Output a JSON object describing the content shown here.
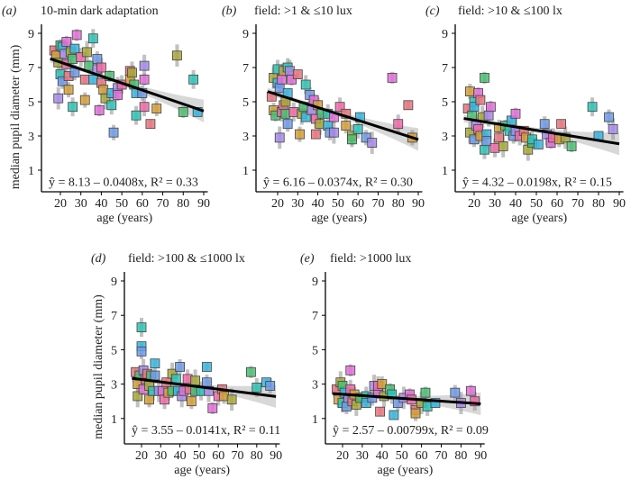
{
  "chart_data": {
    "type": "scatter",
    "palette": [
      "#e8757f",
      "#d4a03a",
      "#a8a83a",
      "#4bbf73",
      "#2ec4b6",
      "#38b6e0",
      "#6f9be8",
      "#a78bea",
      "#e070d8",
      "#f06aa8"
    ],
    "ylabel": "median pupil diameter (mm)",
    "xlabel": "age (years)",
    "xticks": [
      20,
      30,
      40,
      50,
      60,
      70,
      80,
      90
    ],
    "yticks": [
      1,
      3,
      5,
      7,
      9
    ],
    "xlim": [
      11,
      93
    ],
    "ylim": [
      -0.3,
      9.5
    ],
    "panels": [
      {
        "letter": "(a)",
        "title": "10-min dark adaptation",
        "intercept": 8.13,
        "slope": -0.0408,
        "r2": 0.33,
        "equation": "ŷ = 8.13 – 0.0408x, R² = 0.33",
        "points": [
          [
            17,
            8.0
          ],
          [
            18,
            7.7
          ],
          [
            19,
            7.3
          ],
          [
            20,
            8.3
          ],
          [
            20,
            6.6
          ],
          [
            21,
            8.2
          ],
          [
            21,
            6.2
          ],
          [
            22,
            7.8
          ],
          [
            23,
            8.5
          ],
          [
            23,
            7.2
          ],
          [
            24,
            6.5
          ],
          [
            24,
            5.7
          ],
          [
            25,
            7.9
          ],
          [
            26,
            7.5
          ],
          [
            26,
            4.7
          ],
          [
            27,
            8.1
          ],
          [
            27,
            6.7
          ],
          [
            19,
            5.2
          ],
          [
            28,
            8.9
          ],
          [
            30,
            7.6
          ],
          [
            32,
            6.3
          ],
          [
            32,
            5.1
          ],
          [
            33,
            7.9
          ],
          [
            34,
            7.1
          ],
          [
            36,
            8.7
          ],
          [
            36,
            6.3
          ],
          [
            38,
            7.5
          ],
          [
            38,
            6.9
          ],
          [
            39,
            4.5
          ],
          [
            40,
            7.0
          ],
          [
            40,
            6.1
          ],
          [
            41,
            5.7
          ],
          [
            42,
            5.2
          ],
          [
            44,
            6.5
          ],
          [
            45,
            4.8
          ],
          [
            45,
            5.5
          ],
          [
            46,
            3.2
          ],
          [
            48,
            5.8
          ],
          [
            48,
            5.4
          ],
          [
            50,
            6.0
          ],
          [
            54,
            6.8
          ],
          [
            54,
            6.3
          ],
          [
            55,
            6.7
          ],
          [
            56,
            6.0
          ],
          [
            57,
            4.2
          ],
          [
            57,
            5.5
          ],
          [
            60,
            5.5
          ],
          [
            61,
            7.1
          ],
          [
            61,
            6.3
          ],
          [
            61,
            4.7
          ],
          [
            64,
            3.7
          ],
          [
            67,
            4.6
          ],
          [
            77,
            7.7
          ],
          [
            80,
            4.4
          ],
          [
            85,
            6.3
          ],
          [
            87,
            4.4
          ]
        ]
      },
      {
        "letter": "(b)",
        "title": "field: >1 & ≤10 lux",
        "intercept": 6.16,
        "slope": -0.0374,
        "r2": 0.3,
        "equation": "ŷ = 6.16 – 0.0374x, R² = 0.30",
        "points": [
          [
            17,
            5.3
          ],
          [
            18,
            4.5
          ],
          [
            18,
            6.4
          ],
          [
            19,
            4.2
          ],
          [
            20,
            6.9
          ],
          [
            20,
            6.1
          ],
          [
            21,
            5.8
          ],
          [
            21,
            2.9
          ],
          [
            22,
            6.3
          ],
          [
            22,
            4.4
          ],
          [
            23,
            4.8
          ],
          [
            23,
            6.8
          ],
          [
            24,
            5.0
          ],
          [
            24,
            4.3
          ],
          [
            25,
            7.0
          ],
          [
            25,
            5.5
          ],
          [
            25,
            3.7
          ],
          [
            26,
            6.8
          ],
          [
            27,
            6.3
          ],
          [
            28,
            4.4
          ],
          [
            30,
            6.6
          ],
          [
            31,
            3.1
          ],
          [
            32,
            4.3
          ],
          [
            33,
            4.7
          ],
          [
            34,
            6.0
          ],
          [
            34,
            4.1
          ],
          [
            36,
            5.4
          ],
          [
            37,
            4.5
          ],
          [
            38,
            5.1
          ],
          [
            39,
            4.0
          ],
          [
            39,
            3.1
          ],
          [
            40,
            4.8
          ],
          [
            41,
            3.7
          ],
          [
            42,
            4.3
          ],
          [
            45,
            4.3
          ],
          [
            45,
            3.6
          ],
          [
            46,
            3.2
          ],
          [
            48,
            3.2
          ],
          [
            48,
            4.1
          ],
          [
            51,
            4.7
          ],
          [
            54,
            4.3
          ],
          [
            54,
            3.6
          ],
          [
            57,
            3.0
          ],
          [
            57,
            2.8
          ],
          [
            60,
            3.4
          ],
          [
            61,
            4.1
          ],
          [
            64,
            2.9
          ],
          [
            67,
            2.6
          ],
          [
            77,
            6.4
          ],
          [
            80,
            3.7
          ],
          [
            85,
            4.8
          ],
          [
            87,
            2.9
          ]
        ]
      },
      {
        "letter": "(c)",
        "title": "field: >10 & ≤100 lx",
        "intercept": 4.32,
        "slope": -0.0198,
        "r2": 0.15,
        "equation": "ŷ = 4.32 – 0.0198x, R² = 0.15",
        "points": [
          [
            17,
            4.6
          ],
          [
            18,
            5.6
          ],
          [
            18,
            3.2
          ],
          [
            19,
            4.2
          ],
          [
            20,
            5.0
          ],
          [
            20,
            4.7
          ],
          [
            20,
            2.8
          ],
          [
            21,
            3.6
          ],
          [
            22,
            5.5
          ],
          [
            22,
            3.4
          ],
          [
            23,
            5.1
          ],
          [
            23,
            3.0
          ],
          [
            24,
            4.1
          ],
          [
            25,
            6.4
          ],
          [
            25,
            2.2
          ],
          [
            26,
            3.1
          ],
          [
            26,
            2.7
          ],
          [
            27,
            4.2
          ],
          [
            28,
            4.7
          ],
          [
            30,
            2.3
          ],
          [
            32,
            2.9
          ],
          [
            32,
            3.5
          ],
          [
            34,
            2.4
          ],
          [
            35,
            3.6
          ],
          [
            37,
            3.3
          ],
          [
            38,
            3.9
          ],
          [
            39,
            3.0
          ],
          [
            40,
            3.3
          ],
          [
            40,
            4.3
          ],
          [
            42,
            3.0
          ],
          [
            44,
            3.3
          ],
          [
            45,
            2.9
          ],
          [
            46,
            2.2
          ],
          [
            48,
            2.6
          ],
          [
            48,
            2.8
          ],
          [
            51,
            2.5
          ],
          [
            54,
            3.7
          ],
          [
            55,
            3.1
          ],
          [
            57,
            2.6
          ],
          [
            58,
            2.9
          ],
          [
            62,
            3.7
          ],
          [
            61,
            2.8
          ],
          [
            64,
            2.9
          ],
          [
            67,
            2.4
          ],
          [
            77,
            4.7
          ],
          [
            80,
            3.0
          ],
          [
            85,
            4.1
          ],
          [
            87,
            3.4
          ]
        ]
      },
      {
        "letter": "(d)",
        "title": "field: >100 & ≤1000 lx",
        "intercept": 3.55,
        "slope": -0.0141,
        "r2": 0.11,
        "equation": "ŷ = 3.55 – 0.0141x, R² = 0.11",
        "points": [
          [
            17,
            3.7
          ],
          [
            18,
            3.0
          ],
          [
            18,
            2.3
          ],
          [
            19,
            3.5
          ],
          [
            20,
            6.3
          ],
          [
            20,
            5.2
          ],
          [
            20,
            4.9
          ],
          [
            21,
            3.8
          ],
          [
            21,
            2.7
          ],
          [
            22,
            3.3
          ],
          [
            23,
            3.6
          ],
          [
            24,
            2.1
          ],
          [
            24,
            2.9
          ],
          [
            25,
            3.5
          ],
          [
            26,
            2.6
          ],
          [
            27,
            4.2
          ],
          [
            27,
            3.5
          ],
          [
            29,
            2.6
          ],
          [
            31,
            2.6
          ],
          [
            32,
            2.1
          ],
          [
            33,
            3.1
          ],
          [
            34,
            2.5
          ],
          [
            36,
            3.6
          ],
          [
            36,
            2.6
          ],
          [
            38,
            3.3
          ],
          [
            39,
            2.6
          ],
          [
            40,
            4.0
          ],
          [
            41,
            2.3
          ],
          [
            42,
            2.6
          ],
          [
            44,
            3.3
          ],
          [
            45,
            2.7
          ],
          [
            46,
            2.0
          ],
          [
            48,
            3.2
          ],
          [
            48,
            2.6
          ],
          [
            51,
            2.6
          ],
          [
            54,
            4.0
          ],
          [
            54,
            3.1
          ],
          [
            55,
            2.6
          ],
          [
            57,
            1.6
          ],
          [
            60,
            2.3
          ],
          [
            62,
            2.7
          ],
          [
            63,
            2.3
          ],
          [
            67,
            2.1
          ],
          [
            77,
            3.7
          ],
          [
            80,
            2.8
          ],
          [
            85,
            3.1
          ],
          [
            87,
            2.9
          ]
        ]
      },
      {
        "letter": "(e)",
        "title": "field: >1000 lux",
        "intercept": 2.57,
        "slope": -0.00799,
        "r2": 0.09,
        "equation": "ŷ = 2.57 – 0.00799x, R² = 0.09",
        "points": [
          [
            17,
            2.7
          ],
          [
            18,
            2.1
          ],
          [
            19,
            3.1
          ],
          [
            20,
            2.9
          ],
          [
            20,
            1.9
          ],
          [
            21,
            2.5
          ],
          [
            22,
            1.7
          ],
          [
            23,
            2.2
          ],
          [
            24,
            3.8
          ],
          [
            24,
            2.7
          ],
          [
            25,
            2.0
          ],
          [
            26,
            2.4
          ],
          [
            27,
            1.8
          ],
          [
            29,
            2.2
          ],
          [
            32,
            2.3
          ],
          [
            32,
            1.9
          ],
          [
            35,
            2.2
          ],
          [
            36,
            2.9
          ],
          [
            38,
            2.5
          ],
          [
            38,
            2.9
          ],
          [
            39,
            1.4
          ],
          [
            40,
            3.0
          ],
          [
            41,
            2.3
          ],
          [
            44,
            2.7
          ],
          [
            45,
            2.4
          ],
          [
            46,
            1.2
          ],
          [
            48,
            1.9
          ],
          [
            51,
            2.2
          ],
          [
            54,
            2.4
          ],
          [
            55,
            2.1
          ],
          [
            57,
            1.5
          ],
          [
            57,
            1.3
          ],
          [
            60,
            1.9
          ],
          [
            62,
            2.5
          ],
          [
            63,
            1.7
          ],
          [
            67,
            1.9
          ],
          [
            77,
            2.5
          ],
          [
            80,
            1.9
          ],
          [
            85,
            2.6
          ],
          [
            87,
            2.0
          ]
        ]
      }
    ]
  }
}
